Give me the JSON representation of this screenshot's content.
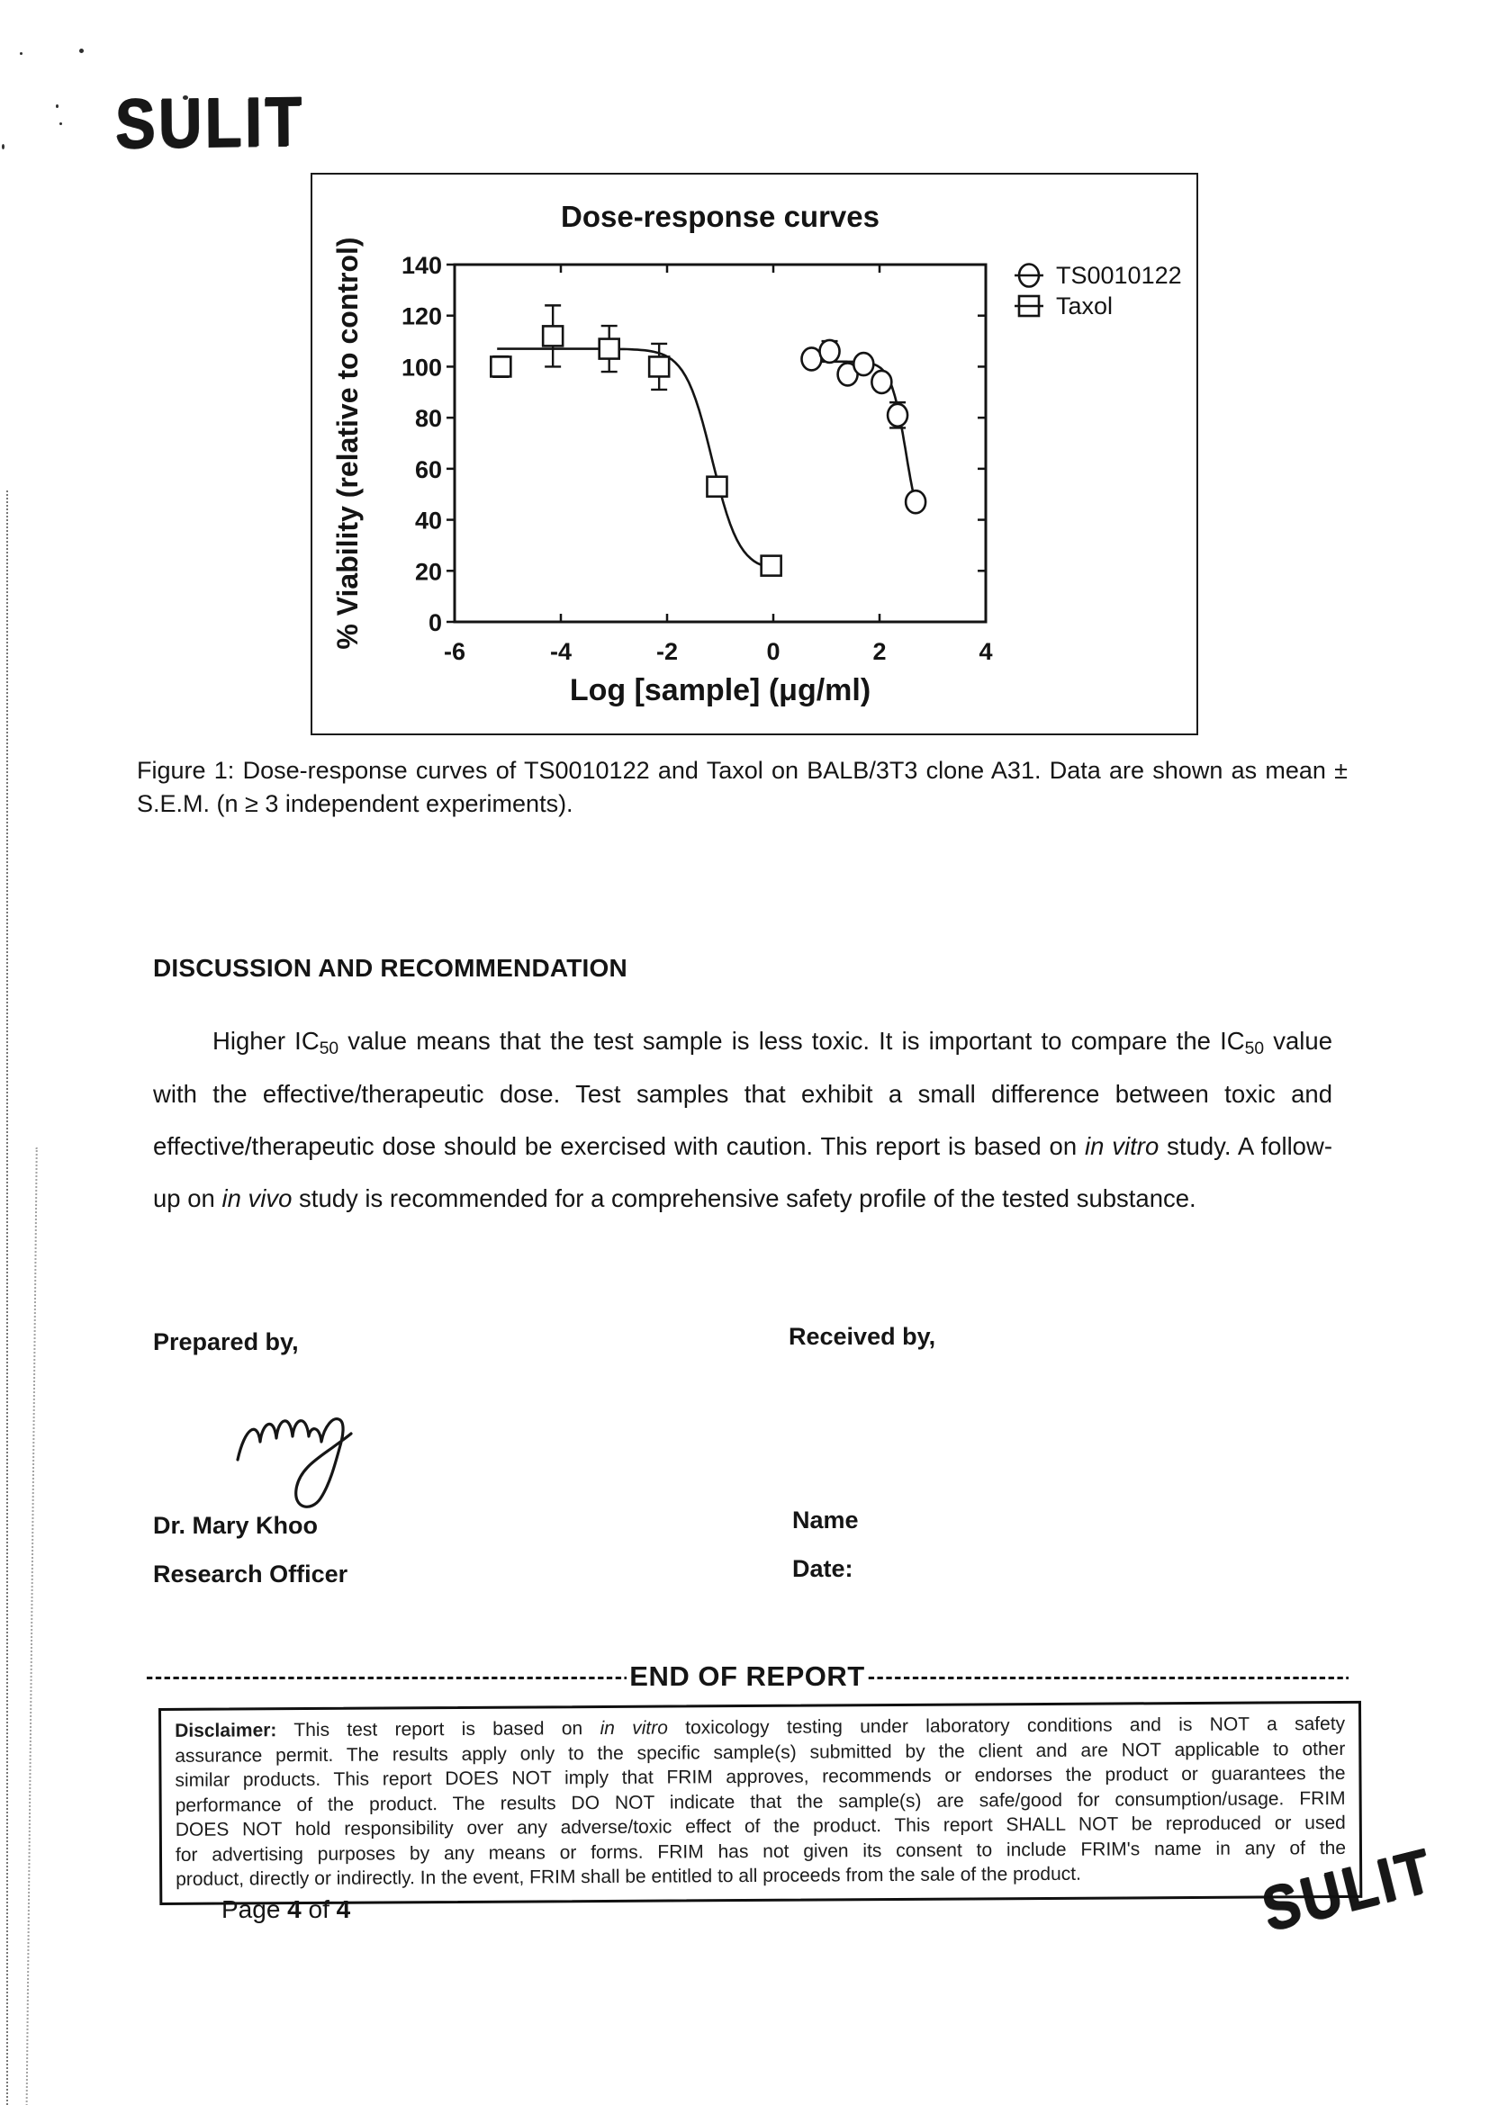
{
  "stamps": {
    "top": "SULIT",
    "bottom": "SULIT"
  },
  "chart_data": {
    "type": "scatter",
    "title": "Dose-response curves",
    "xlabel": "Log [sample] (μg/ml)",
    "ylabel": "% Viability (relative to control)",
    "xlim": [
      -6,
      4
    ],
    "ylim": [
      0,
      140
    ],
    "xticks": [
      -6,
      -4,
      -2,
      0,
      2,
      4
    ],
    "yticks": [
      0,
      20,
      40,
      60,
      80,
      100,
      120,
      140
    ],
    "grid": false,
    "legend_position": "right-outside-top",
    "series": [
      {
        "name": "TS0010122",
        "marker": "circle",
        "points": [
          {
            "x": 0.72,
            "y": 103
          },
          {
            "x": 1.06,
            "y": 106,
            "err": 4
          },
          {
            "x": 1.4,
            "y": 97
          },
          {
            "x": 1.7,
            "y": 101
          },
          {
            "x": 2.04,
            "y": 94
          },
          {
            "x": 2.34,
            "y": 81,
            "err": 5
          },
          {
            "x": 2.68,
            "y": 47
          }
        ],
        "fit": {
          "top": 102,
          "bottom": 30,
          "logec50": 2.5,
          "hill": 3
        },
        "curve_range": [
          0.72,
          2.68
        ]
      },
      {
        "name": "Taxol",
        "marker": "square",
        "points": [
          {
            "x": -5.13,
            "y": 100,
            "err": 4
          },
          {
            "x": -4.15,
            "y": 112,
            "err": 12
          },
          {
            "x": -3.09,
            "y": 107,
            "err": 9
          },
          {
            "x": -2.15,
            "y": 100,
            "err": 9
          },
          {
            "x": -1.06,
            "y": 53
          },
          {
            "x": -0.04,
            "y": 22
          }
        ],
        "fit": {
          "top": 107,
          "bottom": 20,
          "logec50": -1.15,
          "hill": 1.7
        },
        "curve_range": [
          -5.2,
          -0.04
        ]
      }
    ]
  },
  "figure": {
    "caption": "Figure 1: Dose-response curves of TS0010122 and Taxol on BALB/3T3 clone A31. Data are shown as mean ± S.E.M. (n ≥ 3 independent experiments)."
  },
  "discussion": {
    "heading": "DISCUSSION AND RECOMMENDATION",
    "paragraph_segments": [
      {
        "t": "Higher IC"
      },
      {
        "t": "50",
        "sub": true
      },
      {
        "t": " value means that the test sample is less toxic. It is important to compare the IC"
      },
      {
        "t": "50",
        "sub": true
      },
      {
        "t": " value with the effective/therapeutic dose. Test samples that exhibit a small difference between toxic and effective/therapeutic dose should be exercised with caution. This report is based on "
      },
      {
        "t": "in vitro",
        "i": true
      },
      {
        "t": " study. A follow-up on "
      },
      {
        "t": "in vivo",
        "i": true
      },
      {
        "t": " study is recommended for a comprehensive safety profile of the tested substance."
      }
    ]
  },
  "signoff": {
    "prepared_label": "Prepared by,",
    "received_label": "Received by,",
    "prepared_name": "Dr. Mary Khoo",
    "prepared_title": "Research Officer",
    "received_name_label": "Name",
    "received_date_label": "Date:"
  },
  "end_of_report": {
    "left_dashes": "------------------------------------------------------------",
    "label": "END OF REPORT",
    "right_dashes": "------------------------------------------------------------"
  },
  "disclaimer": {
    "lines": [
      [
        {
          "t": "Disclaimer:",
          "b": true
        },
        {
          "t": " This test report is based on "
        },
        {
          "t": "in vitro",
          "i": true
        },
        {
          "t": " toxicology testing under laboratory conditions and is NOT a safety"
        }
      ],
      [
        {
          "t": "assurance permit. The results apply only to the specific sample(s) submitted by the client and are NOT applicable to other"
        }
      ],
      [
        {
          "t": "similar products. This report DOES NOT imply that FRIM approves, recommends or endorses the product or guarantees the"
        }
      ],
      [
        {
          "t": "performance of the product. The results DO NOT indicate that the sample(s) are safe/good for consumption/usage. FRIM"
        }
      ],
      [
        {
          "t": "DOES NOT hold responsibility over any adverse/toxic effect of the product. This report SHALL NOT be reproduced or used"
        }
      ],
      [
        {
          "t": "for advertising purposes by any means or forms. FRIM has not given its consent to include FRIM's name in any of the"
        }
      ],
      [
        {
          "t": "product, directly or indirectly. In the event, FRIM shall be entitled to all proceeds from the sale of the product."
        }
      ]
    ]
  },
  "footer": {
    "page_segments": [
      {
        "t": "Page "
      },
      {
        "t": "4",
        "b": true
      },
      {
        "t": " of "
      },
      {
        "t": "4",
        "b": true
      }
    ]
  }
}
